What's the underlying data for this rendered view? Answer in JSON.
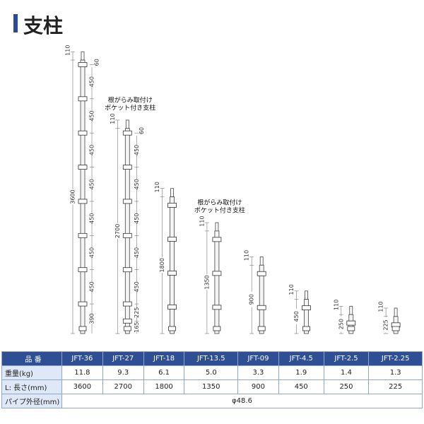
{
  "header": {
    "title": "支柱"
  },
  "diagram": {
    "posts": [
      {
        "top": 110,
        "total": 3600,
        "segments": [
          60,
          450,
          450,
          450,
          450,
          450,
          450,
          450,
          390
        ]
      },
      {
        "note": [
          "根がらみ取付け",
          "ポケット付き支柱"
        ],
        "top": 110,
        "total": 2700,
        "segments": [
          60,
          450,
          450,
          450,
          450,
          450,
          225,
          165
        ]
      },
      {
        "top": 110,
        "total": 1800
      },
      {
        "note": [
          "根がらみ取付け",
          "ポケット付き支柱"
        ],
        "top": 110,
        "total": 1350
      },
      {
        "top": 110,
        "total": 900
      },
      {
        "top": 110,
        "total": 450
      },
      {
        "top": 110,
        "total": 250
      },
      {
        "top": 110,
        "total": 225
      }
    ]
  },
  "table": {
    "header": [
      "品 番",
      "JFT-36",
      "JFT-27",
      "JFT-18",
      "JFT-13.5",
      "JFT-09",
      "JFT-4.5",
      "JFT-2.5",
      "JFT-2.25"
    ],
    "rows": [
      [
        "重量(kg)",
        "11.8",
        "9.3",
        "6.1",
        "5.0",
        "3.3",
        "1.9",
        "1.4",
        "1.3"
      ],
      [
        "L: 長さ(mm)",
        "3600",
        "2700",
        "1800",
        "1350",
        "900",
        "450",
        "250",
        "225"
      ],
      [
        "パイプ外径(mm)",
        "φ48.6"
      ]
    ]
  }
}
